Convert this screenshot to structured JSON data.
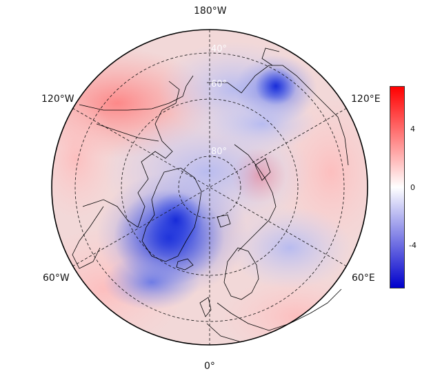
{
  "map": {
    "projection": "north-polar-stereographic",
    "lon_labels": {
      "top": "180°W",
      "upper_left": "120°W",
      "upper_right": "120°E",
      "lower_left": "60°W",
      "lower_right": "60°E",
      "bottom": "0°"
    },
    "lat_labels": [
      "60°",
      "80°"
    ],
    "lat_label_faint": "40°"
  },
  "colorbar": {
    "ticks": [
      "4",
      "0",
      "-4"
    ],
    "colors": {
      "high": "#ff0000",
      "mid": "#ffffff",
      "low": "#0000cc"
    }
  }
}
